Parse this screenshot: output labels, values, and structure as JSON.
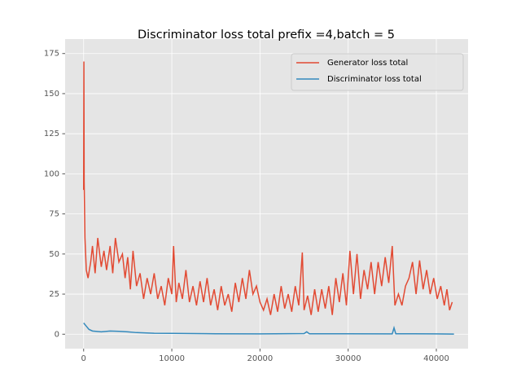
{
  "chart_data": {
    "type": "line",
    "title": "Discriminator loss total prefix =4,batch = 5",
    "series": [
      {
        "name": "Generator loss total",
        "color": "#E24A33",
        "x": [
          0,
          30,
          60,
          150,
          300,
          500,
          800,
          1000,
          1300,
          1600,
          2000,
          2300,
          2600,
          3000,
          3300,
          3600,
          4000,
          4400,
          4700,
          5000,
          5300,
          5600,
          6000,
          6400,
          6800,
          7200,
          7600,
          8000,
          8400,
          8800,
          9200,
          9600,
          10000,
          10200,
          10500,
          10800,
          11200,
          11600,
          12000,
          12400,
          12800,
          13200,
          13600,
          14000,
          14400,
          14800,
          15200,
          15600,
          16000,
          16400,
          16800,
          17200,
          17600,
          18000,
          18400,
          18800,
          19200,
          19600,
          20000,
          20400,
          20800,
          21200,
          21600,
          22000,
          22400,
          22800,
          23200,
          23600,
          24000,
          24400,
          24800,
          25000,
          25400,
          25800,
          26200,
          26600,
          27000,
          27400,
          27800,
          28200,
          28600,
          29000,
          29400,
          29800,
          30200,
          30600,
          31000,
          31400,
          31800,
          32200,
          32600,
          33000,
          33400,
          33800,
          34200,
          34600,
          35000,
          35300,
          35700,
          36100,
          36500,
          36900,
          37300,
          37700,
          38100,
          38500,
          38900,
          39300,
          39700,
          40100,
          40500,
          40900,
          41200,
          41500,
          41800
        ],
        "values": [
          90,
          170,
          95,
          60,
          40,
          35,
          45,
          55,
          38,
          60,
          42,
          52,
          40,
          55,
          38,
          60,
          45,
          50,
          35,
          48,
          28,
          52,
          30,
          38,
          22,
          35,
          25,
          38,
          22,
          30,
          18,
          35,
          25,
          55,
          20,
          32,
          22,
          40,
          20,
          30,
          18,
          33,
          20,
          35,
          18,
          28,
          15,
          30,
          18,
          25,
          14,
          32,
          20,
          35,
          22,
          40,
          25,
          30,
          20,
          15,
          22,
          12,
          25,
          14,
          30,
          16,
          25,
          14,
          30,
          18,
          51,
          15,
          24,
          12,
          28,
          14,
          28,
          16,
          30,
          12,
          35,
          20,
          38,
          18,
          52,
          25,
          50,
          22,
          40,
          28,
          45,
          25,
          45,
          30,
          48,
          32,
          55,
          18,
          25,
          18,
          30,
          35,
          45,
          25,
          46,
          28,
          40,
          25,
          35,
          22,
          30,
          18,
          28,
          15,
          20
        ]
      },
      {
        "name": "Discriminator loss total",
        "color": "#348ABD",
        "x": [
          0,
          300,
          600,
          1000,
          2000,
          3000,
          4000,
          5000,
          6000,
          8000,
          10000,
          15000,
          20000,
          25000,
          25300,
          25600,
          30000,
          35000,
          35200,
          35400,
          40000,
          42000
        ],
        "values": [
          7,
          5,
          3,
          2,
          1.5,
          2,
          1.8,
          1.5,
          1,
          0.6,
          0.5,
          0.3,
          0.2,
          0.4,
          1.5,
          0.3,
          0.3,
          0.2,
          4,
          0.3,
          0.2,
          0.1
        ]
      }
    ],
    "xlim": [
      -2100,
      43600
    ],
    "xticks": [
      0,
      10000,
      20000,
      30000,
      40000
    ],
    "ylim": [
      -9,
      184
    ],
    "yticks": [
      0,
      25,
      50,
      75,
      100,
      125,
      150,
      175
    ],
    "grid": true,
    "legend": "upper right"
  }
}
